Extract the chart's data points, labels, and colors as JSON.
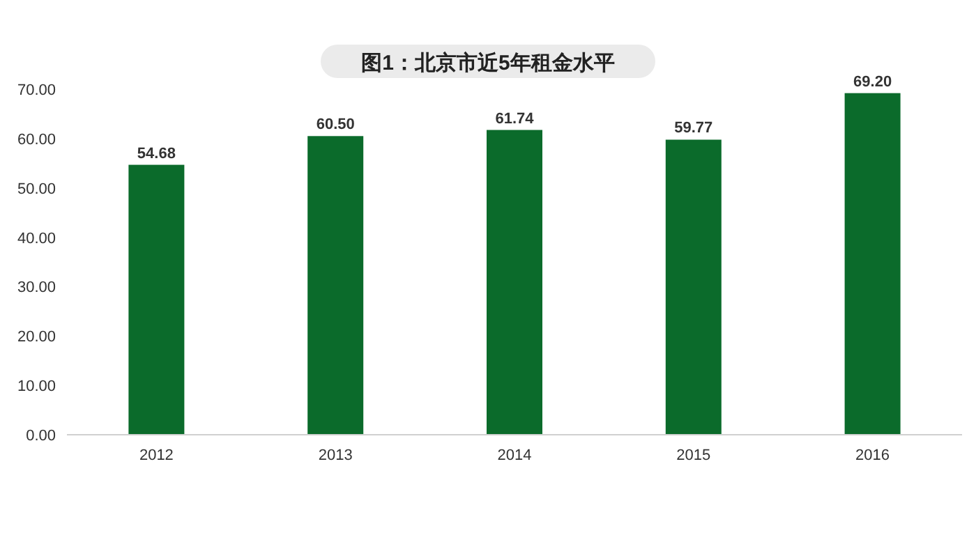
{
  "chart_data": {
    "type": "bar",
    "title": "图1：北京市近5年租金水平",
    "categories": [
      "2012",
      "2013",
      "2014",
      "2015",
      "2016"
    ],
    "values": [
      54.68,
      60.5,
      61.74,
      59.77,
      69.2
    ],
    "color": "#0b6b2b",
    "ylim": [
      0,
      70
    ],
    "yticks": [
      {
        "value": 0,
        "label": "0.00"
      },
      {
        "value": 10,
        "label": "10.00"
      },
      {
        "value": 20,
        "label": "20.00"
      },
      {
        "value": 30,
        "label": "30.00"
      },
      {
        "value": 40,
        "label": "40.00"
      },
      {
        "value": 50,
        "label": "50.00"
      },
      {
        "value": 60,
        "label": "60.00"
      },
      {
        "value": 70,
        "label": "70.00"
      }
    ],
    "value_labels": [
      "54.68",
      "60.50",
      "61.74",
      "59.77",
      "69.20"
    ]
  }
}
